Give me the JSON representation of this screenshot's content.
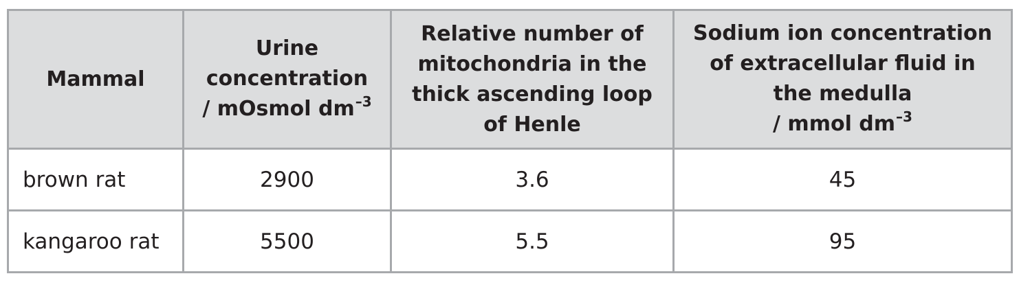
{
  "table": {
    "headers": [
      {
        "lines": [
          "Mammal"
        ]
      },
      {
        "lines": [
          "Urine",
          "concentration",
          "/ mOsmol dm"
        ],
        "superscript": "–3"
      },
      {
        "lines": [
          "Relative number of",
          "mitochondria in the",
          "thick ascending loop",
          "of Henle"
        ]
      },
      {
        "lines": [
          "Sodium ion concentration",
          "of extracellular fluid in",
          "the medulla",
          "/ mmol dm"
        ],
        "superscript": "–3"
      }
    ],
    "rows": [
      {
        "mammal": "brown rat",
        "urine_concentration": "2900",
        "mitochondria": "3.6",
        "sodium": "45"
      },
      {
        "mammal": "kangaroo rat",
        "urine_concentration": "5500",
        "mitochondria": "5.5",
        "sodium": "95"
      }
    ]
  },
  "colors": {
    "header_background": "#dcddde",
    "border": "#a7a9ac",
    "text": "#231f20"
  }
}
